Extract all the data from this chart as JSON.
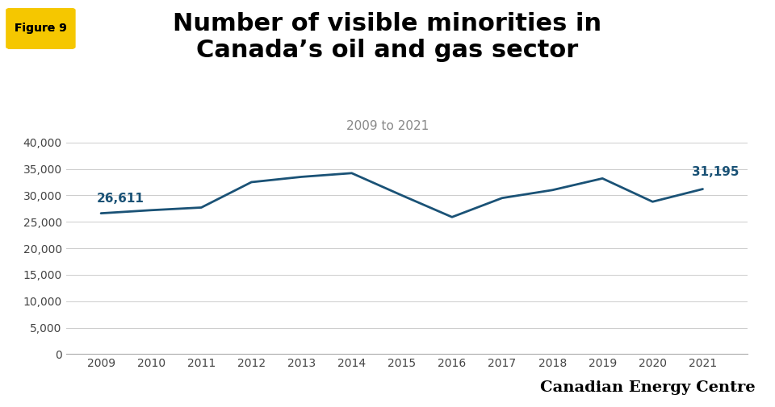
{
  "title_line1": "Number of visible minorities in",
  "title_line2": "Canada’s oil and gas sector",
  "subtitle": "2009 to 2021",
  "figure_label": "Figure 9",
  "years": [
    2009,
    2010,
    2011,
    2012,
    2013,
    2014,
    2015,
    2016,
    2017,
    2018,
    2019,
    2020,
    2021
  ],
  "values": [
    26611,
    27200,
    27700,
    32500,
    33500,
    34200,
    30000,
    25900,
    29500,
    31000,
    33200,
    28800,
    31195
  ],
  "line_color": "#1a5276",
  "label_2009": "26,611",
  "label_2021": "31,195",
  "annotation_color": "#1a5276",
  "ylim": [
    0,
    40000
  ],
  "ytick_step": 5000,
  "background_color": "#ffffff",
  "grid_color": "#cccccc",
  "brand_text": "Canadian Energy Centre",
  "figure_label_bg": "#f5c700",
  "figure_label_color": "#000000",
  "title_fontsize": 22,
  "subtitle_fontsize": 11,
  "annotation_fontsize": 11,
  "tick_fontsize": 10
}
